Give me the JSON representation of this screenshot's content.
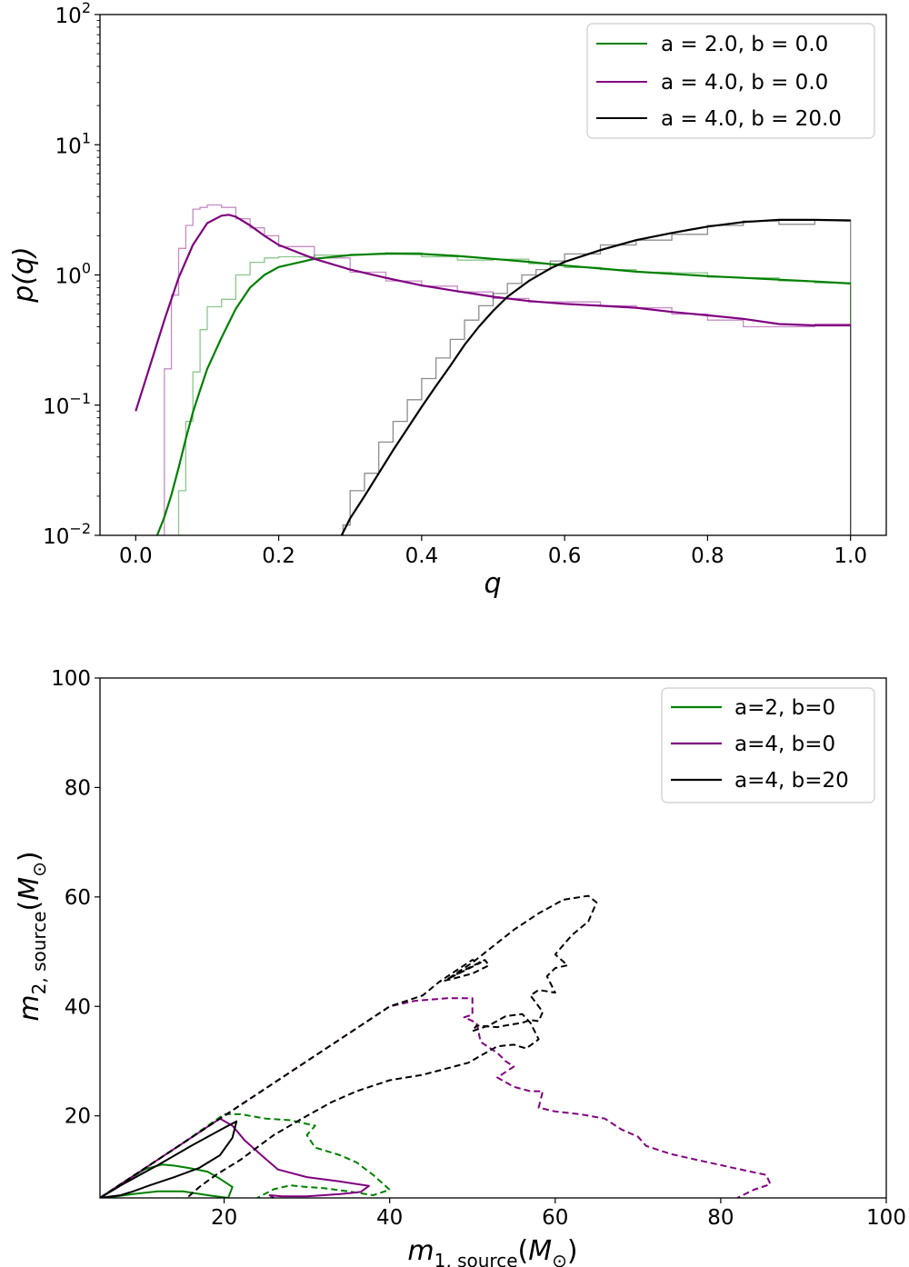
{
  "chart_data": [
    {
      "type": "line",
      "xlabel": "q",
      "ylabel": "p(q)",
      "xlim": [
        -0.05,
        1.05
      ],
      "ylim": [
        0.01,
        100
      ],
      "yscale": "log",
      "xticks": [
        "0.0",
        "0.2",
        "0.4",
        "0.6",
        "0.8",
        "1.0"
      ],
      "yticks": [
        {
          "base": "10",
          "exp": "2",
          "value": 100
        },
        {
          "base": "10",
          "exp": "1",
          "value": 10
        },
        {
          "base": "10",
          "exp": "0",
          "value": 1
        },
        {
          "base": "10",
          "exp": "−1",
          "value": 0.1
        },
        {
          "base": "10",
          "exp": "−2",
          "value": 0.01
        }
      ],
      "grid": false,
      "legend_position": "top-right",
      "series": [
        {
          "name": "a = 2.0, b = 0.0",
          "color": "#008000",
          "curve": {
            "x": [
              0.03,
              0.04,
              0.05,
              0.06,
              0.07,
              0.08,
              0.09,
              0.1,
              0.12,
              0.14,
              0.16,
              0.18,
              0.2,
              0.25,
              0.3,
              0.35,
              0.4,
              0.45,
              0.5,
              0.55,
              0.6,
              0.65,
              0.7,
              0.75,
              0.8,
              0.85,
              0.9,
              0.95,
              1.0
            ],
            "y": [
              0.01,
              0.0138,
              0.0205,
              0.033,
              0.055,
              0.088,
              0.13,
              0.19,
              0.33,
              0.55,
              0.8,
              1.0,
              1.15,
              1.33,
              1.42,
              1.46,
              1.45,
              1.4,
              1.33,
              1.26,
              1.18,
              1.12,
              1.06,
              1.02,
              0.98,
              0.95,
              0.92,
              0.89,
              0.86
            ]
          },
          "histogram": {
            "edges": [
              0.06,
              0.07,
              0.08,
              0.09,
              0.1,
              0.12,
              0.14,
              0.16,
              0.18,
              0.2,
              0.25,
              0.3,
              0.35,
              0.4,
              0.45,
              0.5,
              0.55,
              0.6,
              0.65,
              0.7,
              0.75,
              0.8,
              0.85,
              0.9,
              0.95,
              1.0
            ],
            "values": [
              0.022,
              0.075,
              0.18,
              0.38,
              0.57,
              0.65,
              1.0,
              1.25,
              1.35,
              1.38,
              1.42,
              1.44,
              1.48,
              1.38,
              1.3,
              1.32,
              1.22,
              1.14,
              1.1,
              1.05,
              1.04,
              0.96,
              0.95,
              0.9,
              0.87
            ]
          }
        },
        {
          "name": "a = 4.0, b = 0.0",
          "color": "#800080",
          "curve": {
            "x": [
              0.0,
              0.02,
              0.04,
              0.06,
              0.08,
              0.1,
              0.12,
              0.13,
              0.14,
              0.16,
              0.18,
              0.2,
              0.25,
              0.3,
              0.35,
              0.4,
              0.45,
              0.5,
              0.55,
              0.6,
              0.65,
              0.7,
              0.75,
              0.8,
              0.85,
              0.9,
              0.95,
              1.0
            ],
            "y": [
              0.09,
              0.2,
              0.45,
              0.95,
              1.7,
              2.5,
              2.85,
              2.9,
              2.8,
              2.4,
              2.0,
              1.7,
              1.33,
              1.1,
              0.95,
              0.83,
              0.75,
              0.68,
              0.63,
              0.6,
              0.58,
              0.56,
              0.52,
              0.49,
              0.46,
              0.42,
              0.41,
              0.41
            ]
          },
          "histogram": {
            "edges": [
              0.04,
              0.05,
              0.06,
              0.07,
              0.08,
              0.09,
              0.1,
              0.12,
              0.14,
              0.16,
              0.18,
              0.2,
              0.25,
              0.3,
              0.35,
              0.4,
              0.45,
              0.5,
              0.55,
              0.6,
              0.65,
              0.7,
              0.75,
              0.8,
              0.85,
              0.9,
              0.95,
              1.0
            ],
            "values": [
              0.19,
              0.7,
              1.6,
              2.4,
              3.2,
              3.3,
              3.45,
              3.3,
              2.7,
              2.3,
              2.0,
              1.65,
              1.35,
              1.05,
              0.9,
              0.82,
              0.74,
              0.66,
              0.62,
              0.62,
              0.58,
              0.56,
              0.5,
              0.45,
              0.4,
              0.4,
              0.42
            ]
          }
        },
        {
          "name": "a = 4.0, b = 20.0",
          "color": "#000000",
          "curve": {
            "x": [
              0.288,
              0.3,
              0.32,
              0.34,
              0.36,
              0.38,
              0.4,
              0.42,
              0.44,
              0.46,
              0.48,
              0.5,
              0.52,
              0.55,
              0.58,
              0.6,
              0.65,
              0.7,
              0.75,
              0.8,
              0.85,
              0.9,
              0.95,
              1.0
            ],
            "y": [
              0.01,
              0.0135,
              0.02,
              0.03,
              0.045,
              0.066,
              0.097,
              0.14,
              0.2,
              0.29,
              0.4,
              0.53,
              0.68,
              0.9,
              1.12,
              1.26,
              1.55,
              1.85,
              2.1,
              2.35,
              2.55,
              2.65,
              2.65,
              2.62
            ]
          },
          "histogram": {
            "edges": [
              0.29,
              0.3,
              0.32,
              0.34,
              0.36,
              0.38,
              0.4,
              0.42,
              0.44,
              0.46,
              0.48,
              0.5,
              0.52,
              0.54,
              0.56,
              0.58,
              0.6,
              0.65,
              0.7,
              0.75,
              0.8,
              0.85,
              0.9,
              0.95,
              1.0
            ],
            "values": [
              0.012,
              0.022,
              0.03,
              0.052,
              0.075,
              0.11,
              0.16,
              0.23,
              0.32,
              0.45,
              0.58,
              0.72,
              0.86,
              1.0,
              1.1,
              1.28,
              1.45,
              1.7,
              1.85,
              2.05,
              2.4,
              2.6,
              2.45,
              2.65
            ]
          }
        }
      ]
    },
    {
      "type": "line",
      "subtype": "contour",
      "xlabel": {
        "main": "m",
        "sub": "1, source",
        "unit_open": "(",
        "unit": "M",
        "unit_sub": "⊙",
        "unit_close": ")"
      },
      "ylabel": {
        "main": "m",
        "sub": "2, source",
        "unit_open": "(",
        "unit": "M",
        "unit_sub": "⊙",
        "unit_close": ")"
      },
      "xlim": [
        5,
        100
      ],
      "ylim": [
        5,
        100
      ],
      "xticks": [
        "20",
        "40",
        "60",
        "80",
        "100"
      ],
      "yticks": [
        "20",
        "40",
        "60",
        "80",
        "100"
      ],
      "grid": false,
      "legend_position": "top-right",
      "series": [
        {
          "name": "a=2, b=0",
          "color": "#008000",
          "solid": {
            "x": [
              5,
              8,
              10.5,
              12.5,
              14,
              16,
              18,
              19.5,
              21,
              20.5,
              18,
              15,
              12,
              9,
              7,
              5
            ],
            "y": [
              5,
              8,
              10.3,
              11.1,
              10.9,
              10.4,
              9.8,
              8.5,
              7,
              5,
              5.5,
              6.2,
              6.2,
              5.7,
              5.3,
              5
            ]
          },
          "dashed": {
            "x": [
              5,
              10,
              15,
              20,
              22,
              25,
              28,
              31,
              30,
              31,
              34,
              36,
              38,
              40,
              38,
              35,
              32,
              30,
              28,
              26,
              24
            ],
            "y": [
              5,
              10,
              15,
              20.3,
              20.3,
              19.5,
              19.2,
              18.2,
              16.5,
              14.2,
              12.8,
              11.5,
              9.2,
              6.5,
              5.5,
              6.2,
              6.8,
              7,
              7.3,
              6.6,
              5
            ]
          }
        },
        {
          "name": "a=4, b=0",
          "color": "#800080",
          "solid": {
            "x": [
              5,
              10,
              15,
              19.5,
              21,
              22.5,
              24.5,
              26.5,
              30,
              34,
              37.5,
              36.5,
              34,
              30,
              27,
              25.5,
              26
            ],
            "y": [
              5,
              10,
              15,
              19.5,
              18.2,
              15.5,
              12.8,
              10.2,
              8.8,
              8,
              7.2,
              6.1,
              5.7,
              5.3,
              5.3,
              5.5,
              5
            ]
          },
          "dashed": {
            "x": [
              5,
              15,
              25,
              30,
              35,
              40,
              43,
              47,
              50,
              50,
              49,
              50.5,
              51,
              53,
              54,
              55,
              53,
              55,
              57,
              58.5,
              58,
              60,
              63,
              66,
              68,
              70,
              71,
              74,
              77,
              80,
              83,
              85.5,
              86,
              84,
              82
            ],
            "y": [
              5,
              15,
              25,
              30,
              35,
              40,
              41,
              41.5,
              41.5,
              38.5,
              38,
              37,
              33.5,
              31.5,
              30,
              29,
              27,
              25.3,
              24.5,
              24.5,
              21.5,
              20.8,
              20.3,
              19.5,
              17.5,
              16.2,
              14.5,
              13,
              12,
              11,
              10,
              9.2,
              7.5,
              6.5,
              5
            ]
          }
        },
        {
          "name": "a=4, b=20",
          "color": "#000000",
          "solid": {
            "x": [
              5,
              8,
              12,
              16,
              20,
              21.5,
              21,
              19.5,
              17,
              14,
              11,
              9,
              7.5,
              6,
              5
            ],
            "y": [
              5,
              7.7,
              11,
              14.5,
              17.8,
              19,
              16,
              12.8,
              10.5,
              8.8,
              7.3,
              6.2,
              5.5,
              5.2,
              5
            ]
          },
          "dashed_outer": {
            "x": [
              5,
              15,
              25,
              35,
              40,
              44,
              46,
              48,
              50,
              51,
              47,
              50,
              55,
              58,
              61,
              64,
              65,
              64,
              62,
              60,
              61.5,
              60,
              59,
              60,
              58,
              57,
              58.5,
              58,
              57,
              56,
              54,
              53,
              50.5,
              50,
              52,
              54,
              56,
              57,
              58,
              56.5,
              55,
              53,
              51,
              49.5,
              46.5,
              44,
              40,
              36,
              33,
              30,
              26,
              22,
              19,
              17,
              15.5
            ],
            "y": [
              5,
              15,
              25,
              35,
              40,
              42,
              44.5,
              46.5,
              48.5,
              48,
              45,
              48,
              54,
              57,
              59.5,
              60.2,
              59,
              55.5,
              53,
              49.5,
              47.5,
              47,
              45.5,
              42.5,
              43,
              42,
              39,
              37.3,
              37.5,
              37,
              36.5,
              36.2,
              36.5,
              35.5,
              36.5,
              38.2,
              38.6,
              37,
              34,
              32.3,
              33,
              32.7,
              31,
              29.7,
              28.5,
              27.5,
              26.5,
              24.5,
              22.5,
              20,
              16.5,
              12,
              9.2,
              7,
              5
            ]
          },
          "dashed_inner": {
            "x": [
              47,
              49.5,
              51.5,
              52,
              50,
              47.5,
              46
            ],
            "y": [
              45,
              47,
              48.5,
              47.5,
              46,
              45,
              44.5
            ]
          }
        }
      ]
    }
  ]
}
